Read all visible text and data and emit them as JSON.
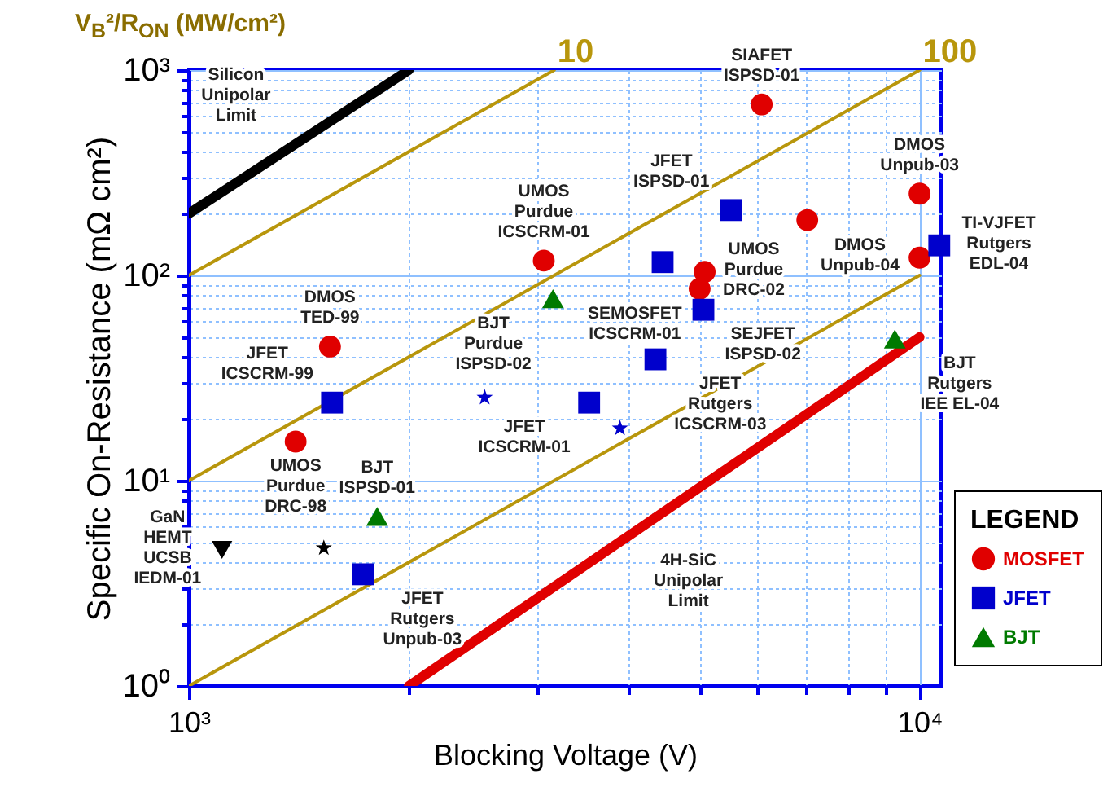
{
  "chart_data": {
    "type": "scatter",
    "xlabel": "Blocking Voltage (V)",
    "ylabel": "Specific On-Resistance (mΩ cm²)",
    "log": "xy",
    "grid": true,
    "legend": "bottom right",
    "legend_title": "LEGEND",
    "xlim": [
      1000,
      10700
    ],
    "ylim": [
      1,
      1000
    ],
    "xticks": [
      {
        "value": 1000,
        "label": "10³"
      },
      {
        "value": 2000,
        "label": null
      },
      {
        "value": 3000,
        "label": null
      },
      {
        "value": 4000,
        "label": null
      },
      {
        "value": 5000,
        "label": null
      },
      {
        "value": 6000,
        "label": null
      },
      {
        "value": 7000,
        "label": null
      },
      {
        "value": 8000,
        "label": null
      },
      {
        "value": 9000,
        "label": null
      },
      {
        "value": 10000,
        "label": "10⁴"
      }
    ],
    "yticks": [
      {
        "value": 1,
        "label": "10⁰"
      },
      {
        "value": 2,
        "label": null
      },
      {
        "value": 3,
        "label": null
      },
      {
        "value": 4,
        "label": null
      },
      {
        "value": 5,
        "label": null
      },
      {
        "value": 6,
        "label": null
      },
      {
        "value": 7,
        "label": null
      },
      {
        "value": 8,
        "label": null
      },
      {
        "value": 9,
        "label": null
      },
      {
        "value": 10,
        "label": "10¹"
      },
      {
        "value": 20,
        "label": null
      },
      {
        "value": 30,
        "label": null
      },
      {
        "value": 40,
        "label": null
      },
      {
        "value": 50,
        "label": null
      },
      {
        "value": 60,
        "label": null
      },
      {
        "value": 70,
        "label": null
      },
      {
        "value": 80,
        "label": null
      },
      {
        "value": 90,
        "label": null
      },
      {
        "value": 100,
        "label": "10²"
      },
      {
        "value": 200,
        "label": null
      },
      {
        "value": 300,
        "label": null
      },
      {
        "value": 400,
        "label": null
      },
      {
        "value": 500,
        "label": null
      },
      {
        "value": 600,
        "label": null
      },
      {
        "value": 700,
        "label": null
      },
      {
        "value": 800,
        "label": null
      },
      {
        "value": 900,
        "label": null
      },
      {
        "value": 1000,
        "label": "10³"
      }
    ],
    "series": [
      {
        "type": "line",
        "color": "#b8960c",
        "name": "10",
        "x": [
          1000,
          3162
        ],
        "values": [
          100,
          1000
        ]
      },
      {
        "type": "line",
        "color": "#b8960c",
        "name": "100",
        "x": [
          1000,
          10000
        ],
        "values": [
          10,
          1000
        ]
      },
      {
        "type": "line",
        "color": "#b8960c",
        "x": [
          1000,
          10000
        ],
        "values": [
          1,
          100
        ]
      },
      {
        "type": "line",
        "color": "#000000",
        "x": [
          1000,
          2000
        ],
        "values": [
          200,
          1000
        ]
      },
      {
        "type": "line",
        "color": "#e00000",
        "x": [
          2000,
          10000
        ],
        "values": [
          1,
          50
        ]
      },
      {
        "name": "MOSFET",
        "color": "#e00000",
        "marker": "circle",
        "x": [
          1400,
          1560,
          3060,
          6080,
          5080,
          5000,
          7020,
          10000,
          10000
        ],
        "values": [
          15.5,
          45,
          118,
          680,
          104,
          86,
          186,
          250,
          122
        ]
      },
      {
        "name": "JFET",
        "color": "#0000cc",
        "marker": "square",
        "x": [
          1570,
          3530,
          4350,
          5060,
          5520,
          4450,
          10640,
          1730
        ],
        "values": [
          24,
          24,
          39,
          68,
          208,
          116,
          140,
          3.5
        ]
      },
      {
        "name": "BJT",
        "color": "#007a00",
        "marker": "triangle",
        "x": [
          3150,
          1810,
          9250
        ],
        "values": [
          77,
          6.7,
          49
        ]
      },
      {
        "color": "#000000",
        "marker": "triangle-down",
        "x": [
          1110
        ],
        "values": [
          4.6
        ]
      },
      {
        "color": "#0000cc",
        "marker": "star",
        "x": [
          2540,
          3890
        ],
        "values": [
          25.4,
          18
        ]
      },
      {
        "color": "#000000",
        "marker": "star",
        "x": [
          1530
        ],
        "values": [
          4.7
        ]
      }
    ],
    "annotations": [
      "V$_{B}$²/R$_{ON}$ (MW/cm²)",
      {
        "text": "Silicon\nUnipolar\nLimit",
        "x": 1400,
        "y": 437
      },
      {
        "text": "4H-SiC\nUnipolar\nLimit",
        "x": 4000,
        "y": 5.39
      },
      {
        "text": "UMOS\nPurdue\nDRC-98",
        "x": 1400,
        "y": 15.5
      },
      {
        "text": "DMOS\nTED-99",
        "x": 1560,
        "y": 45
      },
      {
        "text": "UMOS\nPurdue\nICSCRM-01",
        "x": 3060,
        "y": 118
      },
      {
        "text": "SIAFET\nISPSD-01",
        "x": 6080,
        "y": 680
      },
      {
        "text": "UMOS\nPurdue\nDRC-02",
        "x": 5080,
        "y": 104
      },
      {
        "text": "JFET\nISPSD-01",
        "x": 5520,
        "y": 208
      },
      {
        "text": "DMOS\nUnpub-03",
        "x": 10000,
        "y": 250
      },
      {
        "text": "TI-VJFET\nRutgers\nEDL-04",
        "x": 10640,
        "y": 140
      },
      {
        "text": "DMOS\nUnpub-04",
        "x": 10000,
        "y": 122
      },
      {
        "text": "SEMOSFET\nICSCRM-01",
        "x": 5000,
        "y": 86
      },
      {
        "text": "SEJFET\nISPSD-02",
        "x": 5060,
        "y": 68
      },
      {
        "text": "JFET\nRutgers\nICSCRM-03",
        "x": 4350,
        "y": 39
      },
      {
        "text": "BJT\nRutgers\nIEE EL-04",
        "x": 9250,
        "y": 49
      },
      {
        "text": "BJT\nPurdue\nISPSD-02",
        "x": 3150,
        "y": 77
      },
      {
        "text": "JFET\nICSCRM-99",
        "x": 1570,
        "y": 24
      },
      {
        "text": "JFET\nICSCRM-01",
        "x": 3530,
        "y": 24
      },
      {
        "text": "BJT\nISPSD-01",
        "x": 1810,
        "y": 6.7
      },
      {
        "text": "GaN\nHEMT\nUCSB\nIEDM-01",
        "x": 1110,
        "y": 4.6
      },
      {
        "text": "JFET\nRutgers\nUnpub-03",
        "x": 1730,
        "y": 3.5
      }
    ]
  }
}
